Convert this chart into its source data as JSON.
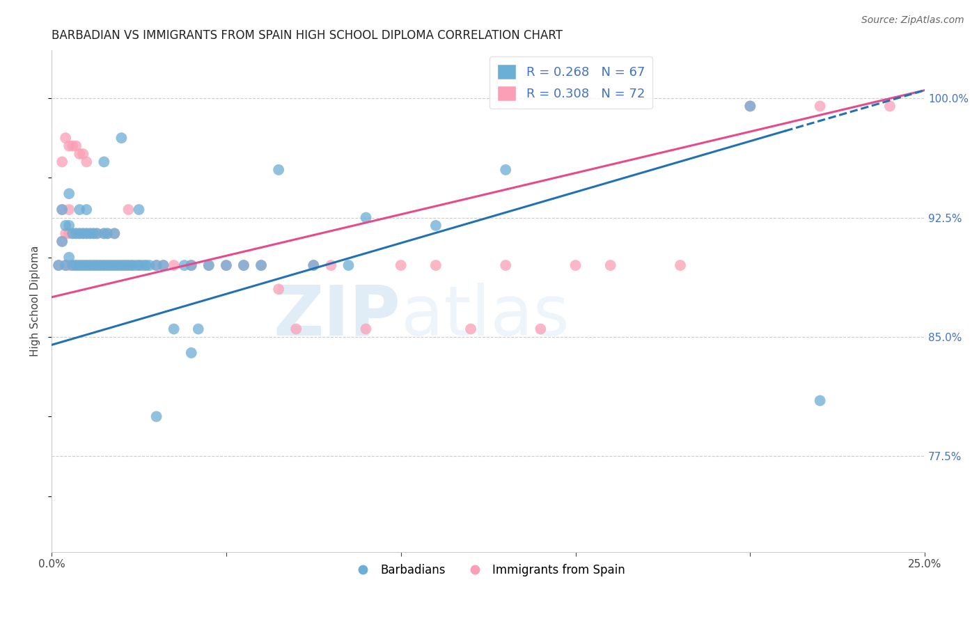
{
  "title": "BARBADIAN VS IMMIGRANTS FROM SPAIN HIGH SCHOOL DIPLOMA CORRELATION CHART",
  "source": "Source: ZipAtlas.com",
  "ylabel": "High School Diploma",
  "x_min": 0.0,
  "x_max": 0.25,
  "y_min": 0.715,
  "y_max": 1.03,
  "y_tick_labels_right": [
    "100.0%",
    "92.5%",
    "85.0%",
    "77.5%"
  ],
  "y_tick_values_right": [
    1.0,
    0.925,
    0.85,
    0.775
  ],
  "blue_color": "#6baed6",
  "pink_color": "#fa9fb5",
  "blue_line_color": "#2171b5",
  "pink_line_color": "#e8498a",
  "legend_blue_label": "R = 0.268   N = 67",
  "legend_pink_label": "R = 0.308   N = 72",
  "legend_barbadians": "Barbadians",
  "legend_immigrants": "Immigrants from Spain",
  "watermark_zip": "ZIP",
  "watermark_atlas": "atlas",
  "blue_line_x0": 0.0,
  "blue_line_y0": 0.845,
  "blue_line_x1": 0.25,
  "blue_line_y1": 1.005,
  "pink_line_x0": 0.0,
  "pink_line_y0": 0.875,
  "pink_line_x1": 0.25,
  "pink_line_y1": 1.005,
  "blue_scatter_x": [
    0.002,
    0.003,
    0.003,
    0.004,
    0.004,
    0.005,
    0.005,
    0.005,
    0.006,
    0.006,
    0.007,
    0.007,
    0.008,
    0.008,
    0.008,
    0.009,
    0.009,
    0.01,
    0.01,
    0.01,
    0.011,
    0.011,
    0.012,
    0.012,
    0.013,
    0.013,
    0.014,
    0.015,
    0.015,
    0.016,
    0.016,
    0.017,
    0.018,
    0.018,
    0.019,
    0.02,
    0.021,
    0.022,
    0.023,
    0.024,
    0.025,
    0.026,
    0.027,
    0.028,
    0.03,
    0.032,
    0.035,
    0.038,
    0.04,
    0.042,
    0.045,
    0.05,
    0.055,
    0.06,
    0.065,
    0.075,
    0.085,
    0.09,
    0.11,
    0.13,
    0.015,
    0.02,
    0.025,
    0.03,
    0.04,
    0.2,
    0.22
  ],
  "blue_scatter_y": [
    0.895,
    0.91,
    0.93,
    0.895,
    0.92,
    0.9,
    0.92,
    0.94,
    0.895,
    0.915,
    0.895,
    0.915,
    0.895,
    0.915,
    0.93,
    0.895,
    0.915,
    0.895,
    0.915,
    0.93,
    0.895,
    0.915,
    0.895,
    0.915,
    0.895,
    0.915,
    0.895,
    0.895,
    0.915,
    0.895,
    0.915,
    0.895,
    0.895,
    0.915,
    0.895,
    0.895,
    0.895,
    0.895,
    0.895,
    0.895,
    0.895,
    0.895,
    0.895,
    0.895,
    0.895,
    0.895,
    0.855,
    0.895,
    0.895,
    0.855,
    0.895,
    0.895,
    0.895,
    0.895,
    0.955,
    0.895,
    0.895,
    0.925,
    0.92,
    0.955,
    0.96,
    0.975,
    0.93,
    0.8,
    0.84,
    0.995,
    0.81
  ],
  "pink_scatter_x": [
    0.002,
    0.003,
    0.003,
    0.004,
    0.004,
    0.005,
    0.005,
    0.005,
    0.006,
    0.006,
    0.007,
    0.007,
    0.008,
    0.008,
    0.009,
    0.009,
    0.01,
    0.01,
    0.011,
    0.011,
    0.012,
    0.012,
    0.013,
    0.013,
    0.014,
    0.015,
    0.015,
    0.016,
    0.016,
    0.017,
    0.018,
    0.018,
    0.019,
    0.02,
    0.021,
    0.022,
    0.023,
    0.025,
    0.027,
    0.03,
    0.032,
    0.035,
    0.04,
    0.045,
    0.05,
    0.055,
    0.06,
    0.065,
    0.07,
    0.075,
    0.08,
    0.09,
    0.1,
    0.11,
    0.12,
    0.13,
    0.14,
    0.15,
    0.16,
    0.18,
    0.003,
    0.004,
    0.005,
    0.006,
    0.007,
    0.008,
    0.009,
    0.01,
    0.022,
    0.2,
    0.22,
    0.24
  ],
  "pink_scatter_y": [
    0.895,
    0.91,
    0.93,
    0.895,
    0.915,
    0.895,
    0.915,
    0.93,
    0.895,
    0.915,
    0.895,
    0.915,
    0.895,
    0.915,
    0.895,
    0.915,
    0.895,
    0.915,
    0.895,
    0.915,
    0.895,
    0.915,
    0.895,
    0.915,
    0.895,
    0.895,
    0.915,
    0.895,
    0.915,
    0.895,
    0.895,
    0.915,
    0.895,
    0.895,
    0.895,
    0.895,
    0.895,
    0.895,
    0.895,
    0.895,
    0.895,
    0.895,
    0.895,
    0.895,
    0.895,
    0.895,
    0.895,
    0.88,
    0.855,
    0.895,
    0.895,
    0.855,
    0.895,
    0.895,
    0.855,
    0.895,
    0.855,
    0.895,
    0.895,
    0.895,
    0.96,
    0.975,
    0.97,
    0.97,
    0.97,
    0.965,
    0.965,
    0.96,
    0.93,
    0.995,
    0.995,
    0.995
  ]
}
